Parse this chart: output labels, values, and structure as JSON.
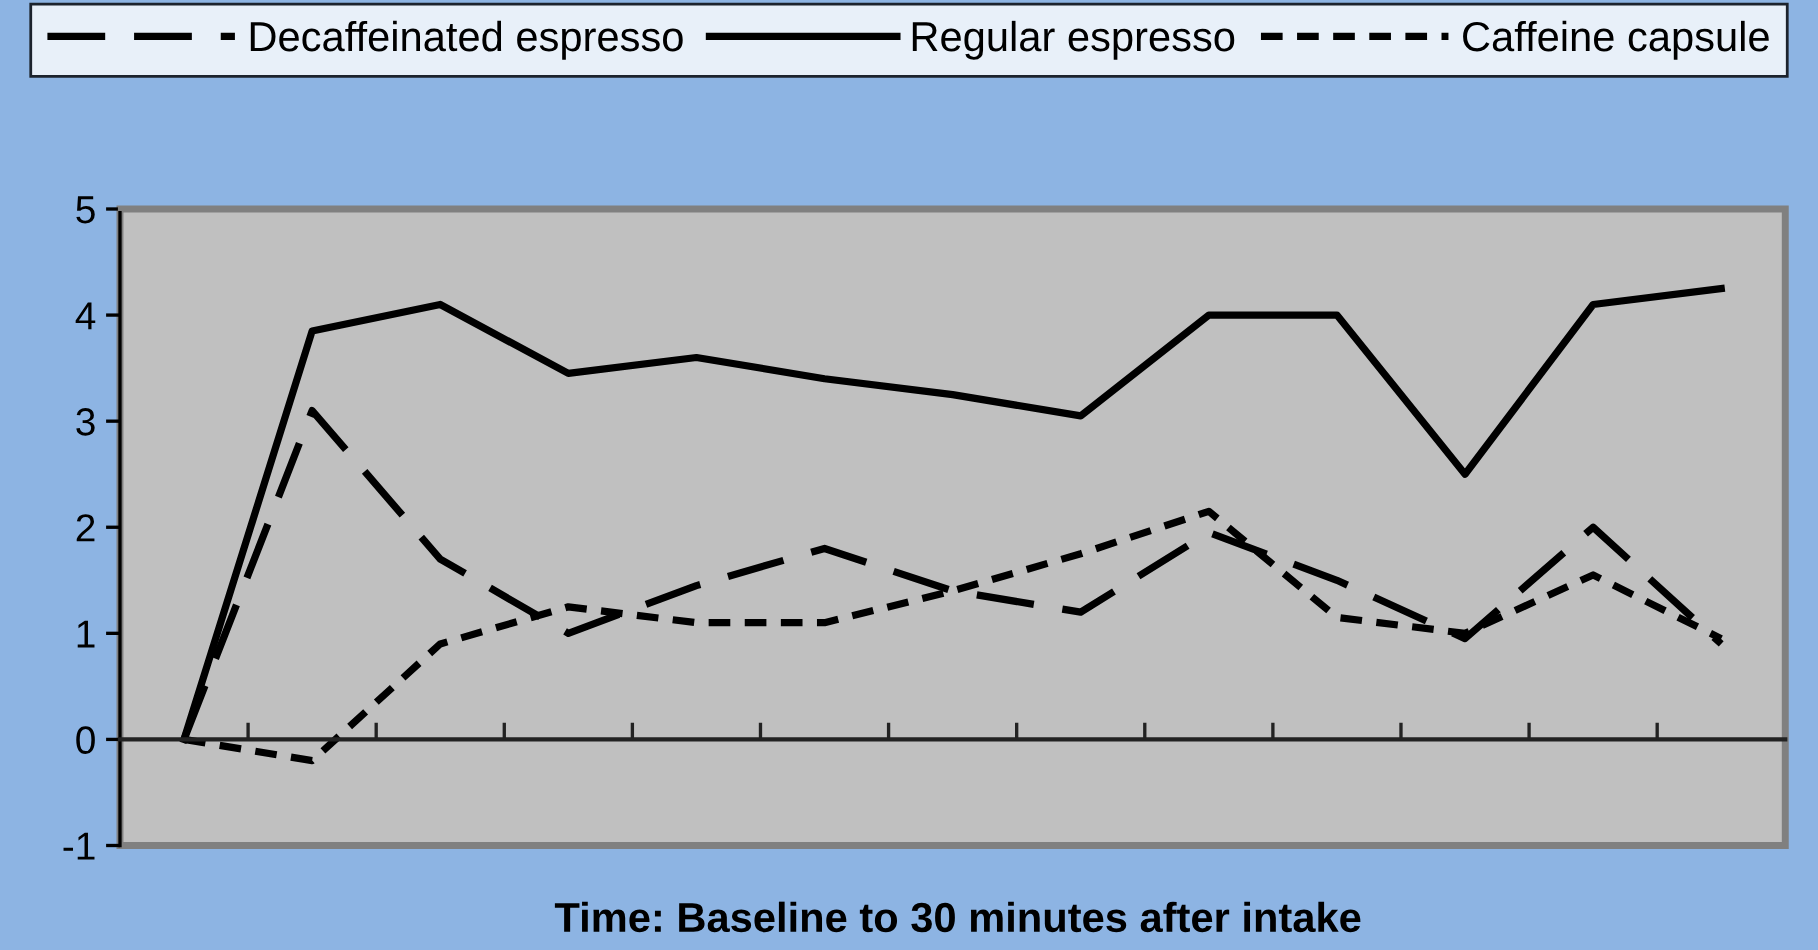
{
  "chart_data": {
    "type": "line",
    "xlabel": "Time: Baseline to 30 minutes after intake",
    "categories": [
      null,
      null,
      null,
      null,
      null,
      null,
      null,
      null,
      null,
      null,
      null,
      null,
      null
    ],
    "series": [
      {
        "name": "Decaffeinated espresso",
        "color": "#000000",
        "line_style": "dashed",
        "values": [
          0,
          3.1,
          1.7,
          1.0,
          1.45,
          1.8,
          1.4,
          1.2,
          1.95,
          1.5,
          0.95,
          2.0,
          0.9
        ]
      },
      {
        "name": "Regular espresso",
        "color": "#000000",
        "line_style": "solid",
        "values": [
          0,
          3.85,
          4.1,
          3.45,
          3.6,
          3.4,
          3.25,
          3.05,
          4.0,
          4.0,
          2.5,
          4.1,
          4.25
        ]
      },
      {
        "name": "Caffeine capsule",
        "color": "#000000",
        "line_style": "dotted",
        "values": [
          0,
          -0.2,
          0.9,
          1.25,
          1.1,
          1.1,
          1.4,
          1.75,
          2.15,
          1.15,
          1.0,
          1.55,
          0.95
        ]
      }
    ],
    "ylim": [
      -1,
      5
    ],
    "yticks": [
      -1,
      0,
      1,
      2,
      3,
      4,
      5
    ],
    "legend": "top",
    "marker": "none"
  }
}
